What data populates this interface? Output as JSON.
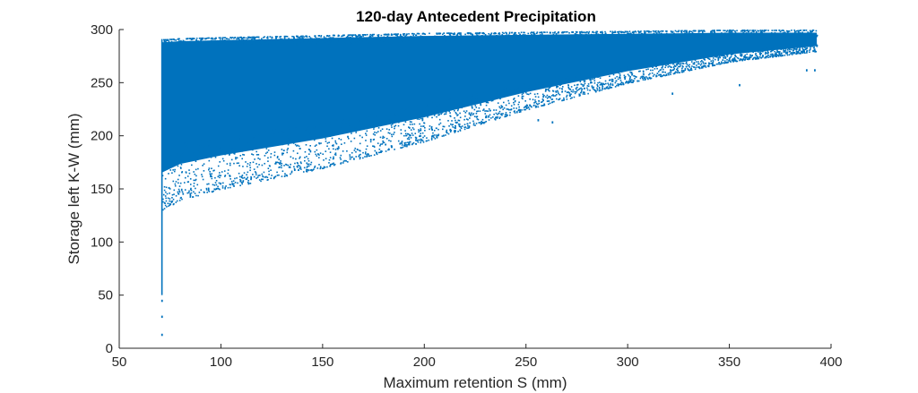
{
  "chart_data": {
    "type": "scatter",
    "title": "120-day Antecedent Precipitation",
    "xlabel": "Maximum retention S (mm)",
    "ylabel": "Storage left K-W (mm)",
    "xlim": [
      50,
      400
    ],
    "ylim": [
      0,
      300
    ],
    "x_ticks": [
      50,
      100,
      150,
      200,
      250,
      300,
      350,
      400
    ],
    "y_ticks": [
      0,
      50,
      100,
      150,
      200,
      250,
      300
    ],
    "grid": false,
    "legend": "none",
    "series": [
      {
        "color": "#0072BD",
        "x_range": [
          71,
          393
        ],
        "envelope_x": [
          71,
          80,
          100,
          150,
          200,
          250,
          300,
          350,
          393
        ],
        "envelope_upper": [
          291,
          292,
          293,
          295,
          297,
          298,
          299,
          300,
          300
        ],
        "envelope_lower": [
          130,
          140,
          150,
          170,
          195,
          225,
          250,
          270,
          280
        ],
        "outliers": [
          {
            "x": 71,
            "y": 13
          },
          {
            "x": 71,
            "y": 30
          },
          {
            "x": 71,
            "y": 45
          },
          {
            "x": 388,
            "y": 262
          },
          {
            "x": 392,
            "y": 262
          },
          {
            "x": 256,
            "y": 215
          },
          {
            "x": 263,
            "y": 213
          },
          {
            "x": 322,
            "y": 240
          },
          {
            "x": 355,
            "y": 248
          }
        ]
      }
    ]
  }
}
